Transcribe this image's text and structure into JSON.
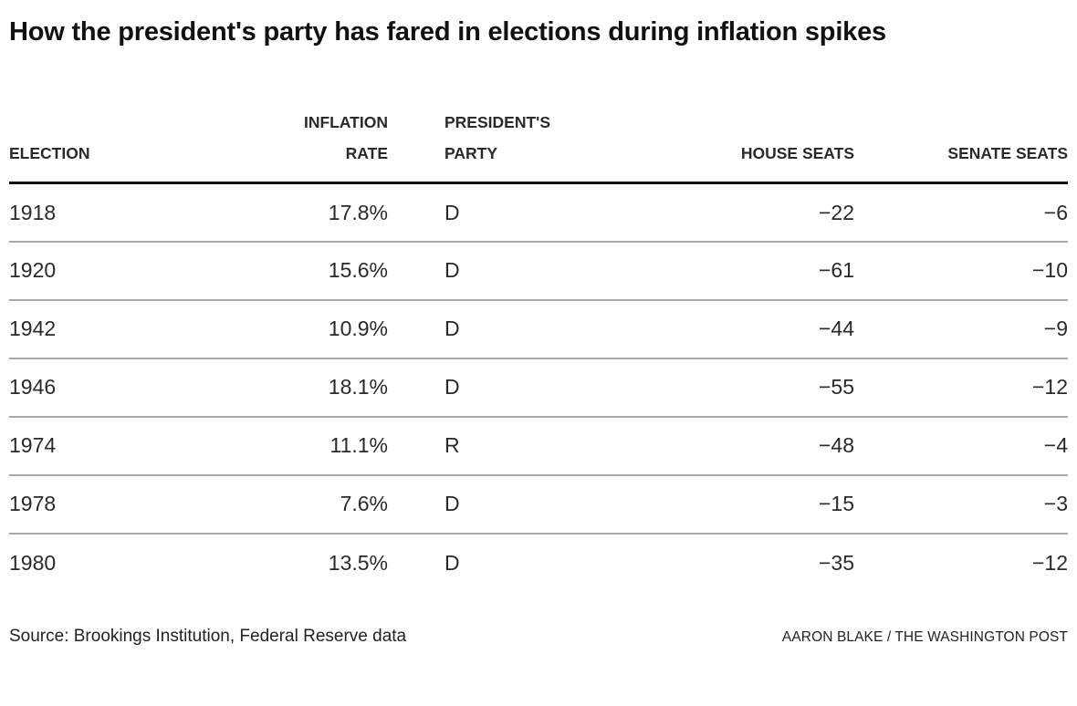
{
  "title": "How the president's party has fared in elections during inflation spikes",
  "header_display": {
    "election": "ELECTION",
    "inflation_rate": "INFLATION\nRATE",
    "presidents_party": "PRESIDENT'S\nPARTY",
    "house_seats": "HOUSE SEATS",
    "senate_seats": "SENATE SEATS"
  },
  "chart_data": {
    "type": "table",
    "title": "How the president's party has fared in elections during inflation spikes",
    "columns": [
      "ELECTION",
      "INFLATION RATE",
      "PRESIDENT'S PARTY",
      "HOUSE SEATS",
      "SENATE SEATS"
    ],
    "rows": [
      {
        "election": "1918",
        "inflation_rate": "17.8%",
        "presidents_party": "D",
        "house_seats": "−22",
        "senate_seats": "−6"
      },
      {
        "election": "1920",
        "inflation_rate": "15.6%",
        "presidents_party": "D",
        "house_seats": "−61",
        "senate_seats": "−10"
      },
      {
        "election": "1942",
        "inflation_rate": "10.9%",
        "presidents_party": "D",
        "house_seats": "−44",
        "senate_seats": "−9"
      },
      {
        "election": "1946",
        "inflation_rate": "18.1%",
        "presidents_party": "D",
        "house_seats": "−55",
        "senate_seats": "−12"
      },
      {
        "election": "1974",
        "inflation_rate": "11.1%",
        "presidents_party": "R",
        "house_seats": "−48",
        "senate_seats": "−4"
      },
      {
        "election": "1978",
        "inflation_rate": "7.6%",
        "presidents_party": "D",
        "house_seats": "−15",
        "senate_seats": "−3"
      },
      {
        "election": "1980",
        "inflation_rate": "13.5%",
        "presidents_party": "D",
        "house_seats": "−35",
        "senate_seats": "−12"
      }
    ]
  },
  "footer": {
    "source": "Source: Brookings Institution, Federal Reserve data",
    "credit": "AARON BLAKE / THE WASHINGTON POST"
  },
  "colors": {
    "title_text": "#111111",
    "body_text": "#2a2a2a",
    "header_rule": "#111111",
    "row_rule": "#a9a9a9",
    "background": "#ffffff"
  }
}
